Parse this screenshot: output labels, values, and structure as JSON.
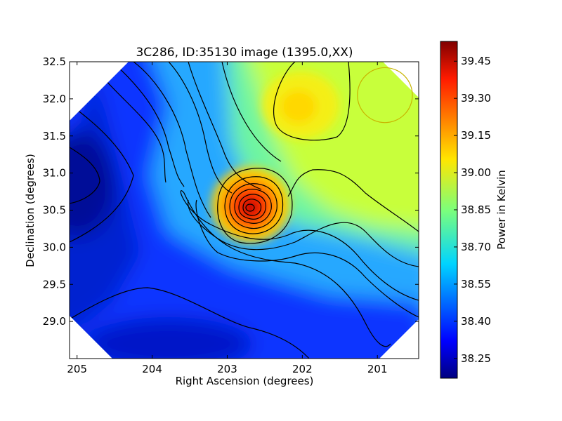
{
  "chart_data": {
    "type": "heatmap",
    "title": "3C286, ID:35130 image (1395.0,XX)",
    "xlabel": "Right Ascension (degrees)",
    "ylabel": "Declination (degrees)",
    "colorbar_label": "Power in Kelvin",
    "xlim": [
      205.1,
      200.45
    ],
    "ylim": [
      28.5,
      32.5
    ],
    "x_ticks": [
      205,
      204,
      203,
      202,
      201
    ],
    "x_tick_labels": [
      "205",
      "204",
      "203",
      "202",
      "201"
    ],
    "y_ticks": [
      29.0,
      29.5,
      30.0,
      30.5,
      31.0,
      31.5,
      32.0,
      32.5
    ],
    "y_tick_labels": [
      "29.0",
      "29.5",
      "30.0",
      "30.5",
      "31.0",
      "31.5",
      "32.0",
      "32.5"
    ],
    "colorbar_range": [
      38.17,
      39.53
    ],
    "colorbar_ticks": [
      38.25,
      38.4,
      38.55,
      38.7,
      38.85,
      39.0,
      39.15,
      39.3,
      39.45
    ],
    "colorbar_tick_labels": [
      "38.25",
      "38.40",
      "38.55",
      "38.70",
      "38.85",
      "39.00",
      "39.15",
      "39.30",
      "39.45"
    ],
    "colormap": "jet",
    "features": [
      {
        "label": "peak",
        "ra": 202.7,
        "dec": 30.55,
        "value": 39.5
      },
      {
        "label": "secondary maximum",
        "ra": 202.0,
        "dec": 31.85,
        "value": 39.1
      },
      {
        "label": "minimum",
        "ra": 205.1,
        "dec": 30.9,
        "value": 38.2
      }
    ],
    "beam_circle": {
      "ra": 200.9,
      "dec": 32.05,
      "radius_deg": 0.37,
      "color": "#c8b400"
    }
  }
}
